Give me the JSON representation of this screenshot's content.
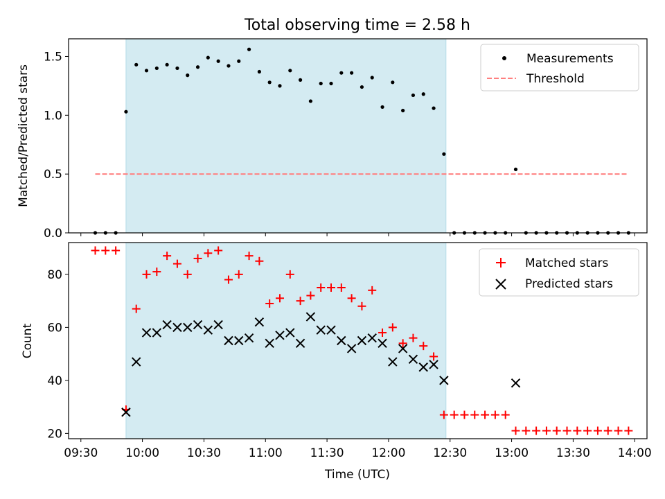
{
  "figure": {
    "title": "Total observing time = 2.58 h",
    "xlabel": "Time (UTC)",
    "x_ticks": [
      "09:30",
      "10:00",
      "10:30",
      "11:00",
      "11:30",
      "12:00",
      "12:30",
      "13:00",
      "13:30",
      "14:00"
    ],
    "shaded_span": {
      "start": "09:52",
      "end": "12:28",
      "color": "#add8e6"
    }
  },
  "chart_data": [
    {
      "type": "scatter",
      "title": "Total observing time = 2.58 h",
      "xlabel": "",
      "ylabel": "Matched/Predicted stars",
      "xlim": [
        "09:24",
        "14:06"
      ],
      "ylim": [
        0,
        1.65
      ],
      "y_ticks": [
        "0.0",
        "0.5",
        "1.0",
        "1.5"
      ],
      "legend": {
        "position": "top-right",
        "entries": [
          "Measurements",
          "Threshold"
        ]
      },
      "series": [
        {
          "name": "Measurements",
          "marker": "dot",
          "color": "#000000",
          "x": [
            "09:37",
            "09:42",
            "09:47",
            "09:52",
            "09:57",
            "10:02",
            "10:07",
            "10:12",
            "10:17",
            "10:22",
            "10:27",
            "10:32",
            "10:37",
            "10:42",
            "10:47",
            "10:52",
            "10:57",
            "11:02",
            "11:07",
            "11:12",
            "11:17",
            "11:22",
            "11:27",
            "11:32",
            "11:37",
            "11:42",
            "11:47",
            "11:52",
            "11:57",
            "12:02",
            "12:07",
            "12:12",
            "12:17",
            "12:22",
            "12:27",
            "12:32",
            "12:37",
            "12:42",
            "12:47",
            "12:52",
            "12:57",
            "13:02",
            "13:07",
            "13:12",
            "13:17",
            "13:22",
            "13:27",
            "13:32",
            "13:37",
            "13:42",
            "13:47",
            "13:52",
            "13:57"
          ],
          "y": [
            0,
            0,
            0,
            1.03,
            1.43,
            1.38,
            1.4,
            1.43,
            1.4,
            1.34,
            1.41,
            1.49,
            1.46,
            1.42,
            1.46,
            1.56,
            1.37,
            1.28,
            1.25,
            1.38,
            1.3,
            1.12,
            1.27,
            1.27,
            1.36,
            1.36,
            1.24,
            1.32,
            1.07,
            1.28,
            1.04,
            1.17,
            1.18,
            1.06,
            0.67,
            0,
            0,
            0,
            0,
            0,
            0,
            0.54,
            0,
            0,
            0,
            0,
            0,
            0,
            0,
            0,
            0,
            0,
            0
          ]
        },
        {
          "name": "Threshold",
          "line": "dashed",
          "color": "#ff7f7f",
          "x": [
            "09:37",
            "13:57"
          ],
          "y": [
            0.5,
            0.5
          ]
        }
      ]
    },
    {
      "type": "scatter",
      "title": "",
      "xlabel": "Time (UTC)",
      "ylabel": "Count",
      "xlim": [
        "09:24",
        "14:06"
      ],
      "ylim": [
        18,
        92
      ],
      "y_ticks": [
        "20",
        "40",
        "60",
        "80"
      ],
      "legend": {
        "position": "top-right",
        "entries": [
          "Matched stars",
          "Predicted stars"
        ]
      },
      "series": [
        {
          "name": "Matched stars",
          "marker": "plus",
          "color": "#ff0000",
          "x": [
            "09:37",
            "09:42",
            "09:47",
            "09:52",
            "09:57",
            "10:02",
            "10:07",
            "10:12",
            "10:17",
            "10:22",
            "10:27",
            "10:32",
            "10:37",
            "10:42",
            "10:47",
            "10:52",
            "10:57",
            "11:02",
            "11:07",
            "11:12",
            "11:17",
            "11:22",
            "11:27",
            "11:32",
            "11:37",
            "11:42",
            "11:47",
            "11:52",
            "11:57",
            "12:02",
            "12:07",
            "12:12",
            "12:17",
            "12:22",
            "12:27",
            "12:32",
            "12:37",
            "12:42",
            "12:47",
            "12:52",
            "12:57",
            "13:02",
            "13:07",
            "13:12",
            "13:17",
            "13:22",
            "13:27",
            "13:32",
            "13:37",
            "13:42",
            "13:47",
            "13:52",
            "13:57"
          ],
          "y": [
            89,
            89,
            89,
            29,
            67,
            80,
            81,
            87,
            84,
            80,
            86,
            88,
            89,
            78,
            80,
            87,
            85,
            69,
            71,
            80,
            70,
            72,
            75,
            75,
            75,
            71,
            68,
            74,
            58,
            60,
            54,
            56,
            53,
            49,
            27,
            27,
            27,
            27,
            27,
            27,
            27,
            21,
            21,
            21,
            21,
            21,
            21,
            21,
            21,
            21,
            21,
            21,
            21
          ]
        },
        {
          "name": "Predicted stars",
          "marker": "x",
          "color": "#000000",
          "x": [
            "09:52",
            "09:57",
            "10:02",
            "10:07",
            "10:12",
            "10:17",
            "10:22",
            "10:27",
            "10:32",
            "10:37",
            "10:42",
            "10:47",
            "10:52",
            "10:57",
            "11:02",
            "11:07",
            "11:12",
            "11:17",
            "11:22",
            "11:27",
            "11:32",
            "11:37",
            "11:42",
            "11:47",
            "11:52",
            "11:57",
            "12:02",
            "12:07",
            "12:12",
            "12:17",
            "12:22",
            "12:27",
            "13:02"
          ],
          "y": [
            28,
            47,
            58,
            58,
            61,
            60,
            60,
            61,
            59,
            61,
            55,
            55,
            56,
            62,
            54,
            57,
            58,
            54,
            64,
            59,
            59,
            55,
            52,
            55,
            56,
            54,
            47,
            52,
            48,
            45,
            46,
            40,
            39
          ]
        }
      ]
    }
  ]
}
